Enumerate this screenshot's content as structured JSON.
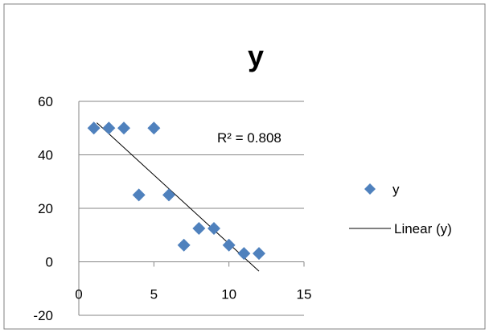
{
  "chart_data": {
    "type": "scatter",
    "title": "y",
    "xlabel": "",
    "ylabel": "",
    "xlim": [
      0,
      15
    ],
    "ylim": [
      -20,
      60
    ],
    "xticks": [
      "0",
      "5",
      "10",
      "15"
    ],
    "yticks": [
      "-20",
      "0",
      "20",
      "40",
      "60"
    ],
    "grid": "horizontal",
    "legend_position": "right",
    "series": [
      {
        "name": "y",
        "marker": "diamond",
        "color": "#4F81BD",
        "x": [
          1,
          2,
          3,
          4,
          5,
          6,
          7,
          8,
          9,
          10,
          11,
          12
        ],
        "y": [
          50,
          50,
          50,
          25,
          50,
          25,
          6.25,
          12.5,
          12.5,
          6.25,
          3.125,
          3.125
        ]
      }
    ],
    "trendline": {
      "name": "Linear (y)",
      "type": "linear",
      "color": "#000000",
      "x": [
        1.2,
        12
      ],
      "y": [
        52,
        -3.5
      ],
      "r2_label": "R² = 0.808"
    }
  }
}
